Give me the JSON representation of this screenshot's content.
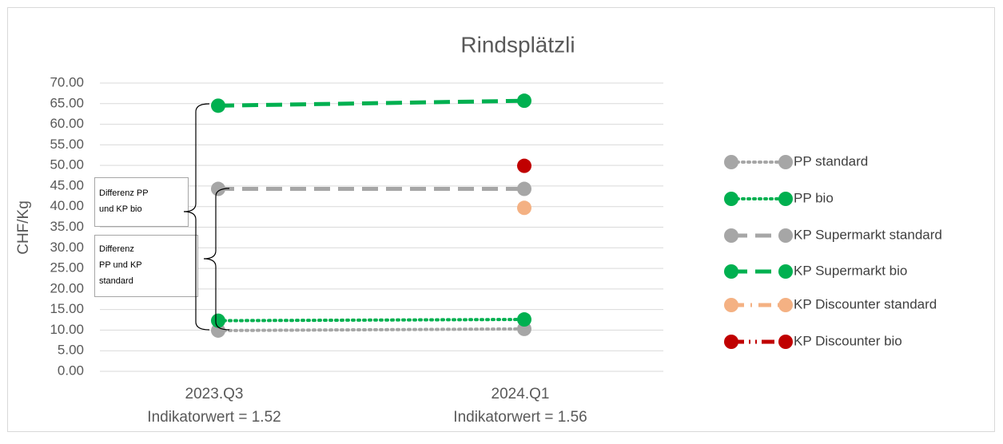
{
  "chart_data": {
    "type": "line",
    "title": "Rindsplätzli",
    "ylabel": "CHF/Kg",
    "categories": [
      "2023.Q3",
      "2024.Q1"
    ],
    "category_sublabels": [
      "Indikatorwert = 1.52",
      "Indikatorwert = 1.56"
    ],
    "ylim": [
      0,
      70
    ],
    "yticks": [
      {
        "value": 0,
        "label": "0.00"
      },
      {
        "value": 5,
        "label": "5.00"
      },
      {
        "value": 10,
        "label": "10.00"
      },
      {
        "value": 15,
        "label": "15.00"
      },
      {
        "value": 20,
        "label": "20.00"
      },
      {
        "value": 25,
        "label": "25.00"
      },
      {
        "value": 30,
        "label": "30.00"
      },
      {
        "value": 35,
        "label": "35.00"
      },
      {
        "value": 40,
        "label": "40.00"
      },
      {
        "value": 45,
        "label": "45.00"
      },
      {
        "value": 50,
        "label": "50.00"
      },
      {
        "value": 55,
        "label": "55.00"
      },
      {
        "value": 60,
        "label": "60.00"
      },
      {
        "value": 65,
        "label": "65.00"
      },
      {
        "value": 70,
        "label": "70.00"
      }
    ],
    "grid": true,
    "legend": "right",
    "series": [
      {
        "name": "PP standard",
        "color": "#a6a6a6",
        "dash": "dotted",
        "values": [
          9.9,
          10.3
        ]
      },
      {
        "name": "PP bio",
        "color": "#00b050",
        "dash": "dotted",
        "values": [
          12.3,
          12.6
        ]
      },
      {
        "name": "KP Supermarkt standard",
        "color": "#a6a6a6",
        "dash": "dashed",
        "values": [
          44.3,
          44.3
        ]
      },
      {
        "name": "KP Supermarkt bio",
        "color": "#00b050",
        "dash": "dashed",
        "values": [
          64.5,
          65.7
        ]
      },
      {
        "name": "KP Discounter standard",
        "color": "#f4b183",
        "dash": "dashdot",
        "values": [
          null,
          39.7
        ]
      },
      {
        "name": "KP Discounter bio",
        "color": "#c00000",
        "dash": "dashdotdot",
        "values": [
          null,
          49.9
        ]
      }
    ],
    "annotations": [
      {
        "lines": [
          "Differenz PP",
          "und KP bio"
        ]
      },
      {
        "lines": [
          "Differenz",
          "PP und KP",
          "standard"
        ]
      }
    ]
  }
}
